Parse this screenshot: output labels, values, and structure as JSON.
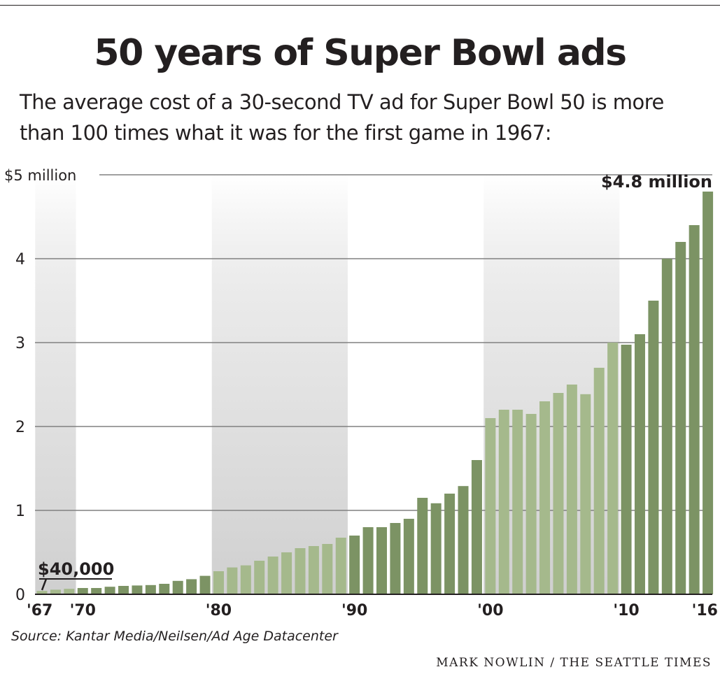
{
  "header": {
    "title": "50 years of Super Bowl ads",
    "subtitle": "The average cost of a 30-second TV ad for Super Bowl 50 is more than 100 times what it was for the first game in 1967:"
  },
  "footer": {
    "source": "Source: Kantar Media/Neilsen/Ad Age Datacenter",
    "credit": "MARK NOWLIN / THE SEATTLE TIMES"
  },
  "colors": {
    "bar_dark": "#7c9364",
    "bar_light": "#a5b98c",
    "text": "#231f20",
    "gridline": "#808080"
  },
  "chart_data": {
    "type": "bar",
    "ylabel": "",
    "xlabel": "",
    "ylim": [
      0,
      5
    ],
    "y_ticks": [
      {
        "value": 0,
        "label": "0"
      },
      {
        "value": 1,
        "label": "1"
      },
      {
        "value": 2,
        "label": "2"
      },
      {
        "value": 3,
        "label": "3"
      },
      {
        "value": 4,
        "label": "4"
      },
      {
        "value": 5,
        "label": "$5 million"
      }
    ],
    "x_ticks": [
      {
        "year": 1967,
        "label": "'67"
      },
      {
        "year": 1970,
        "label": "'70"
      },
      {
        "year": 1980,
        "label": "'80"
      },
      {
        "year": 1990,
        "label": "'90"
      },
      {
        "year": 2000,
        "label": "'00"
      },
      {
        "year": 2010,
        "label": "'10"
      },
      {
        "year": 2016,
        "label": "'16"
      }
    ],
    "decade_shading": [
      {
        "from": 1967,
        "to": 1969
      },
      {
        "from": 1980,
        "to": 1989
      },
      {
        "from": 2000,
        "to": 2009
      }
    ],
    "annotations": [
      {
        "year": 1967,
        "text": "$40,000"
      },
      {
        "year": 2016,
        "text": "$4.8 million"
      }
    ],
    "unit": "$ millions",
    "years": [
      1967,
      1968,
      1969,
      1970,
      1971,
      1972,
      1973,
      1974,
      1975,
      1976,
      1977,
      1978,
      1979,
      1980,
      1981,
      1982,
      1983,
      1984,
      1985,
      1986,
      1987,
      1988,
      1989,
      1990,
      1991,
      1992,
      1993,
      1994,
      1995,
      1996,
      1997,
      1998,
      1999,
      2000,
      2001,
      2002,
      2003,
      2004,
      2005,
      2006,
      2007,
      2008,
      2009,
      2010,
      2011,
      2012,
      2013,
      2014,
      2015,
      2016
    ],
    "values": [
      0.04,
      0.055,
      0.065,
      0.075,
      0.075,
      0.09,
      0.1,
      0.105,
      0.11,
      0.125,
      0.16,
      0.18,
      0.22,
      0.275,
      0.32,
      0.345,
      0.4,
      0.45,
      0.5,
      0.55,
      0.575,
      0.6,
      0.675,
      0.7,
      0.8,
      0.8,
      0.85,
      0.9,
      1.15,
      1.085,
      1.2,
      1.29,
      1.6,
      2.1,
      2.2,
      2.2,
      2.15,
      2.3,
      2.4,
      2.5,
      2.385,
      2.7,
      3.0,
      2.975,
      3.1,
      3.5,
      4.0,
      4.2,
      4.4,
      4.8
    ]
  }
}
